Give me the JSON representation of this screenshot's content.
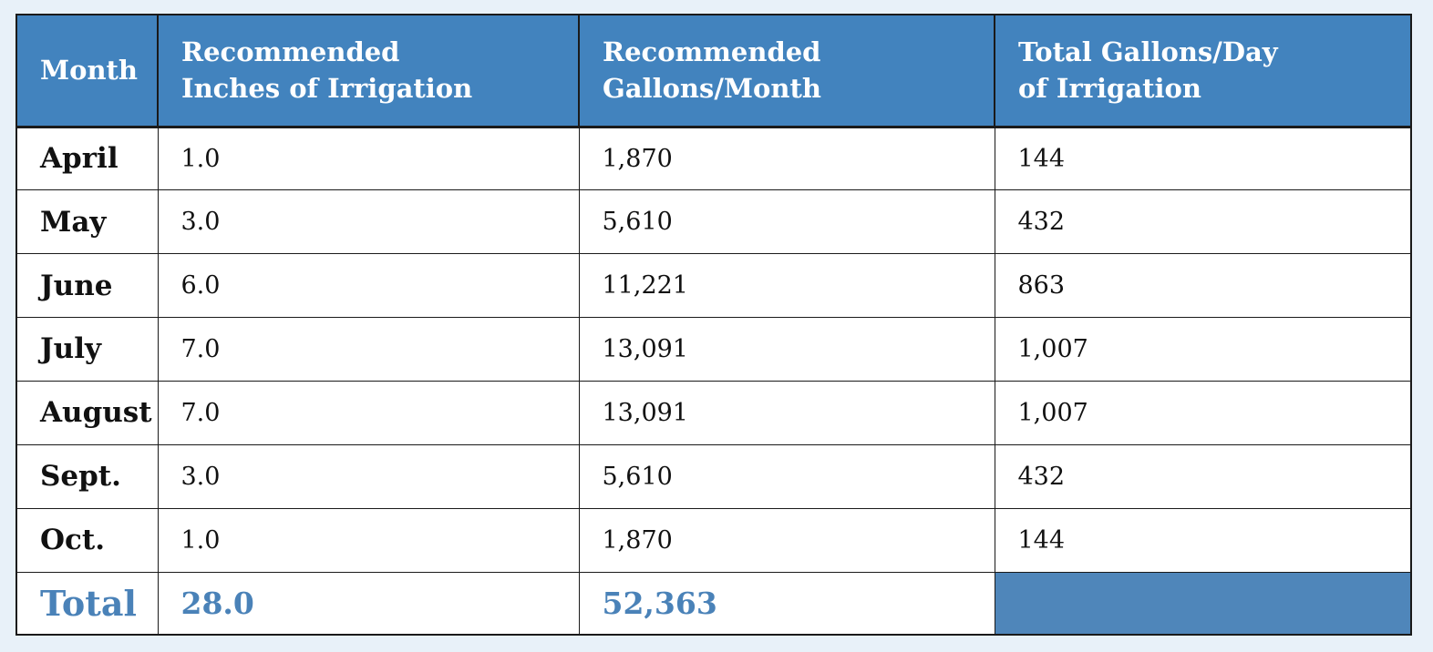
{
  "table": {
    "headers": [
      {
        "line1": "Month",
        "line2": ""
      },
      {
        "line1": "Recommended",
        "line2": "Inches of Irrigation"
      },
      {
        "line1": "Recommended",
        "line2": "Gallons/Month"
      },
      {
        "line1": "Total Gallons/Day",
        "line2": "of Irrigation"
      }
    ],
    "rows": [
      {
        "month": "April",
        "inches": "1.0",
        "gallons_month": "1,870",
        "gallons_day": "144"
      },
      {
        "month": "May",
        "inches": "3.0",
        "gallons_month": "5,610",
        "gallons_day": "432"
      },
      {
        "month": "June",
        "inches": "6.0",
        "gallons_month": "11,221",
        "gallons_day": "863"
      },
      {
        "month": "July",
        "inches": "7.0",
        "gallons_month": "13,091",
        "gallons_day": "1,007"
      },
      {
        "month": "August",
        "inches": "7.0",
        "gallons_month": "13,091",
        "gallons_day": "1,007"
      },
      {
        "month": "Sept.",
        "inches": "3.0",
        "gallons_month": "5,610",
        "gallons_day": "432"
      },
      {
        "month": "Oct.",
        "inches": "1.0",
        "gallons_month": "1,870",
        "gallons_day": "144"
      }
    ],
    "total": {
      "label": "Total",
      "inches": "28.0",
      "gallons_month": "52,363",
      "gallons_day": ""
    }
  },
  "colors": {
    "header_bg": "#4283be",
    "total_text": "#4a82b8",
    "total_fill": "#4f86ba",
    "page_bg": "#e8f1f9"
  }
}
